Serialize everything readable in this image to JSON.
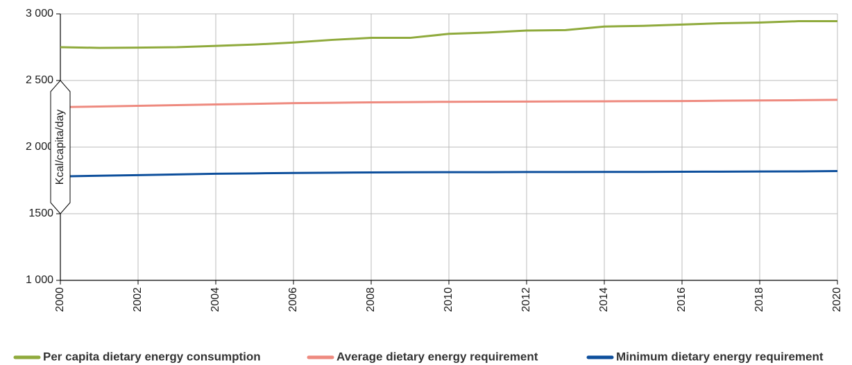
{
  "chart_data": {
    "type": "line",
    "ylabel": "Kcal/capita/day",
    "x": [
      2000,
      2001,
      2002,
      2003,
      2004,
      2005,
      2006,
      2007,
      2008,
      2009,
      2010,
      2011,
      2012,
      2013,
      2014,
      2015,
      2016,
      2017,
      2018,
      2019,
      2020
    ],
    "series": [
      {
        "name": "Per capita dietary energy consumption",
        "color": "#8faa3c",
        "values": [
          2750,
          2745,
          2747,
          2750,
          2760,
          2770,
          2785,
          2805,
          2820,
          2820,
          2850,
          2860,
          2875,
          2878,
          2905,
          2910,
          2920,
          2930,
          2935,
          2945,
          2945
        ]
      },
      {
        "name": "Average dietary energy requirement",
        "color": "#ee8a7f",
        "values": [
          2300,
          2305,
          2310,
          2315,
          2320,
          2325,
          2330,
          2333,
          2336,
          2338,
          2340,
          2341,
          2342,
          2343,
          2344,
          2345,
          2346,
          2348,
          2350,
          2352,
          2355
        ]
      },
      {
        "name": "Minimum dietary energy requirement",
        "color": "#0d4f9c",
        "values": [
          1780,
          1785,
          1790,
          1795,
          1800,
          1803,
          1806,
          1808,
          1810,
          1811,
          1812,
          1812,
          1813,
          1813,
          1814,
          1814,
          1815,
          1816,
          1817,
          1818,
          1820
        ]
      }
    ],
    "xlim": [
      2000,
      2020
    ],
    "xticks": [
      2000,
      2002,
      2004,
      2006,
      2008,
      2010,
      2012,
      2014,
      2016,
      2018,
      2020
    ],
    "ylim": [
      1000,
      3000
    ],
    "yticks": [
      {
        "value": 1000,
        "label": "1 000"
      },
      1500,
      {
        "value": 2000,
        "label": "2 000"
      },
      {
        "value": 2500,
        "label": "2 500"
      },
      {
        "value": 3000,
        "label": "3 000"
      }
    ],
    "grid": true
  }
}
